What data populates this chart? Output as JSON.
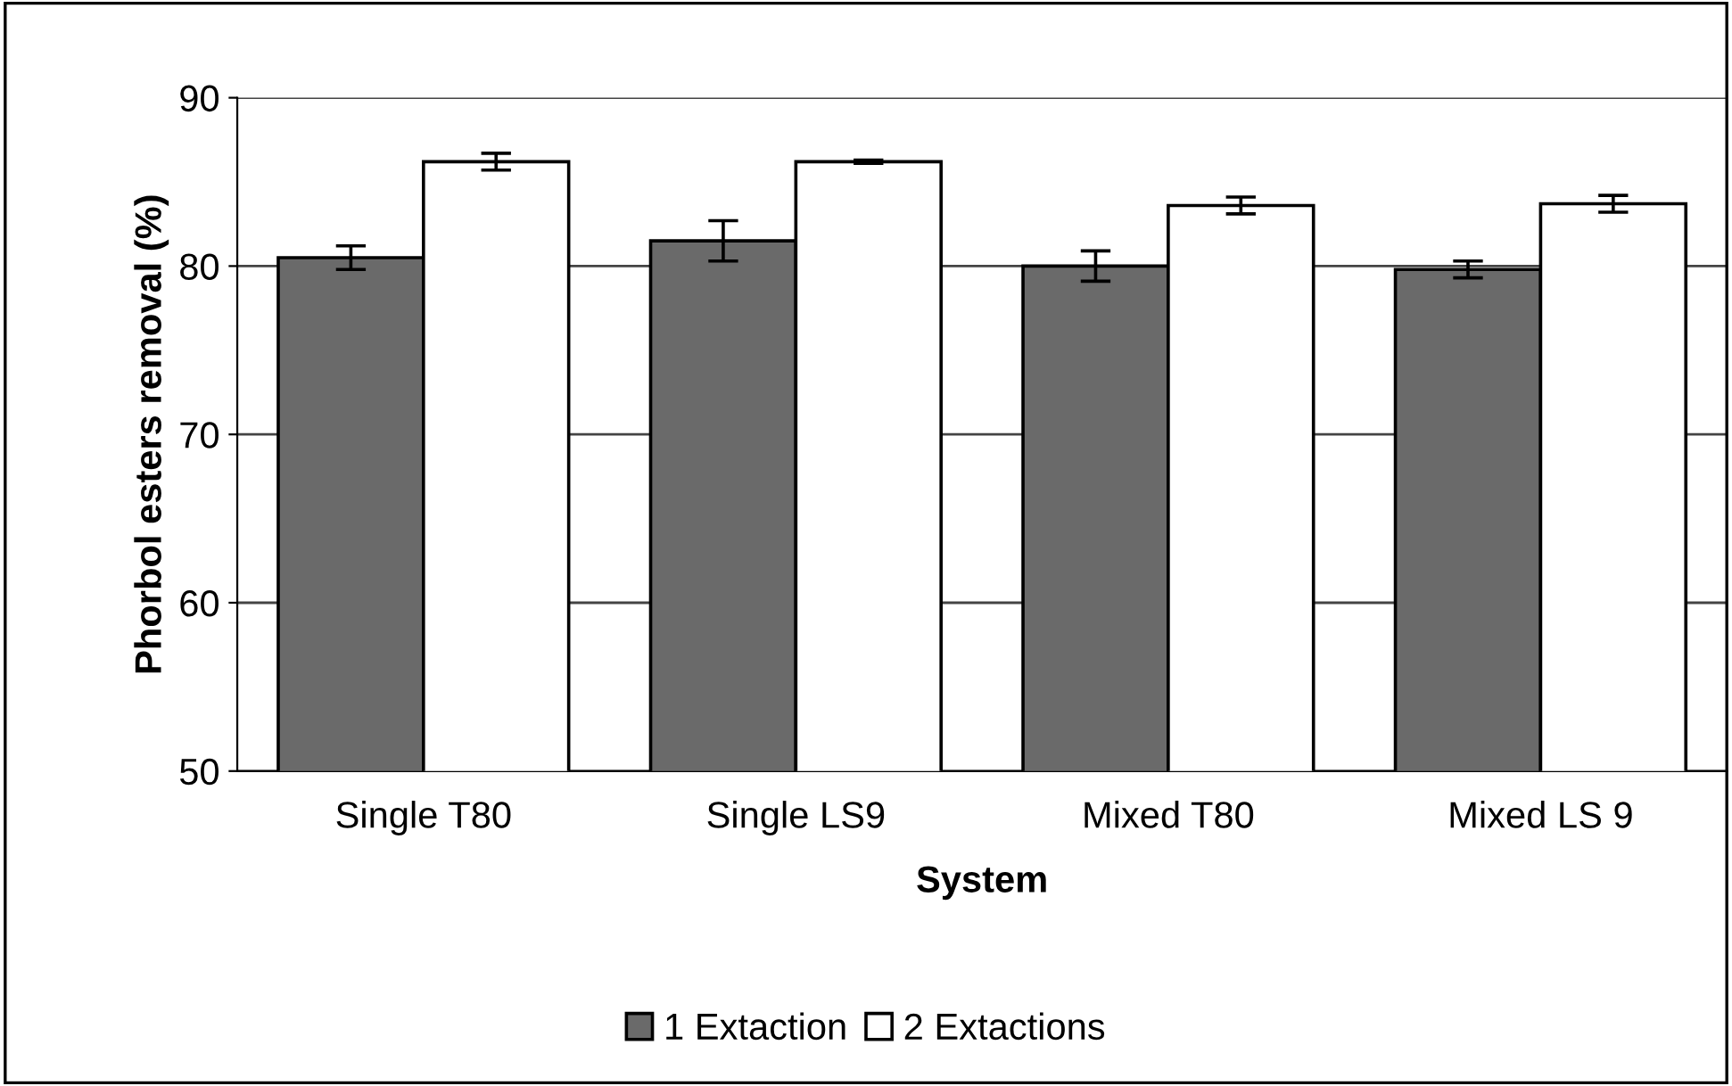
{
  "chart_data": {
    "type": "bar",
    "xlabel": "System",
    "ylabel": "Phorbol esters removal (%)",
    "categories": [
      "Single T80",
      "Single LS9",
      "Mixed T80",
      "Mixed LS 9"
    ],
    "series": [
      {
        "name": "1 Extaction",
        "color": "#6a6a6a",
        "values": [
          80.5,
          81.5,
          80.0,
          79.8
        ],
        "errors": [
          0.7,
          1.2,
          0.9,
          0.5
        ]
      },
      {
        "name": "2 Extactions",
        "color": "#ffffff",
        "values": [
          86.2,
          86.2,
          83.6,
          83.7
        ],
        "errors": [
          0.5,
          0.1,
          0.5,
          0.5
        ]
      }
    ],
    "ylim": [
      50,
      90
    ],
    "yticks": [
      50,
      60,
      70,
      80,
      90
    ],
    "grid": "y",
    "legend": "bottom"
  }
}
